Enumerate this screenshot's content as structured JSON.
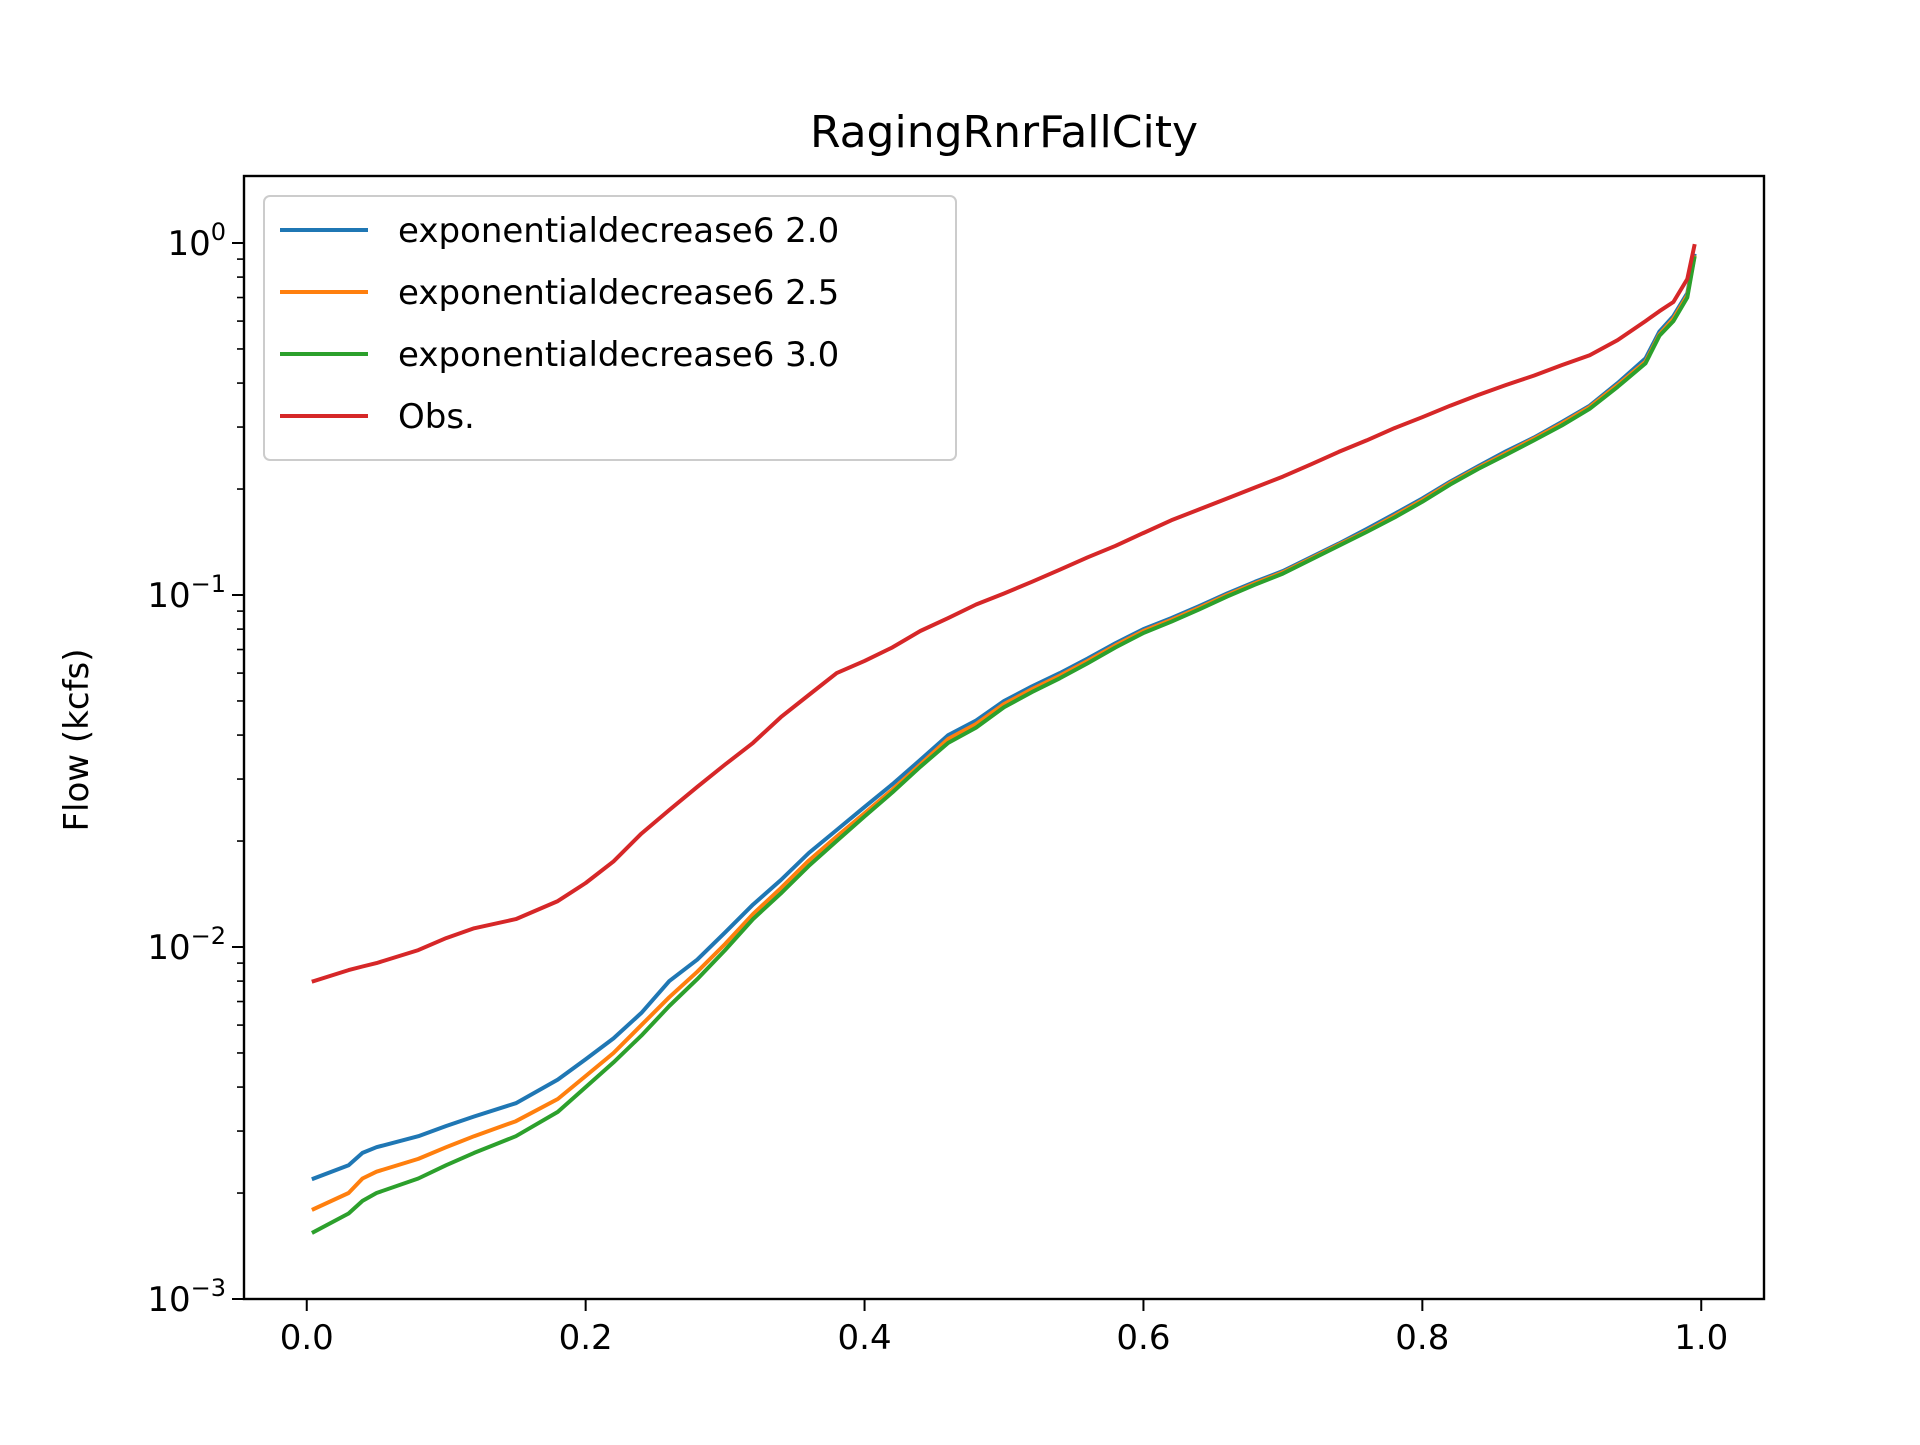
{
  "chart_data": {
    "type": "line",
    "title": "RagingRnrFallCity",
    "xlabel": "",
    "ylabel": "Flow (kcfs)",
    "xlim": [
      -0.045,
      1.045
    ],
    "ylim": [
      0.001,
      1.55
    ],
    "yscale": "log",
    "grid": false,
    "legend_position": "top-left",
    "x_ticks": [
      0.0,
      0.2,
      0.4,
      0.6,
      0.8,
      1.0
    ],
    "x_tick_labels": [
      "0.0",
      "0.2",
      "0.4",
      "0.6",
      "0.8",
      "1.0"
    ],
    "y_ticks": [
      {
        "value": 0.001,
        "base": "10",
        "exp": "−3"
      },
      {
        "value": 0.01,
        "base": "10",
        "exp": "−2"
      },
      {
        "value": 0.1,
        "base": "10",
        "exp": "−1"
      },
      {
        "value": 1,
        "base": "10",
        "exp": "0"
      }
    ],
    "x": [
      0.005,
      0.03,
      0.04,
      0.05,
      0.08,
      0.1,
      0.12,
      0.15,
      0.18,
      0.2,
      0.22,
      0.24,
      0.26,
      0.28,
      0.3,
      0.32,
      0.34,
      0.36,
      0.38,
      0.4,
      0.42,
      0.44,
      0.46,
      0.48,
      0.5,
      0.52,
      0.54,
      0.56,
      0.58,
      0.6,
      0.62,
      0.64,
      0.66,
      0.68,
      0.7,
      0.72,
      0.74,
      0.76,
      0.78,
      0.8,
      0.82,
      0.84,
      0.86,
      0.88,
      0.9,
      0.92,
      0.94,
      0.96,
      0.97,
      0.98,
      0.99,
      0.995
    ],
    "series": [
      {
        "name": "exponentialdecrease6 2.0",
        "color": "#1f77b4",
        "values": [
          0.0022,
          0.0024,
          0.0026,
          0.0027,
          0.0029,
          0.0031,
          0.0033,
          0.0036,
          0.0042,
          0.0048,
          0.0055,
          0.0065,
          0.008,
          0.0092,
          0.011,
          0.0132,
          0.0155,
          0.0185,
          0.0215,
          0.025,
          0.029,
          0.034,
          0.04,
          0.044,
          0.05,
          0.055,
          0.06,
          0.066,
          0.073,
          0.08,
          0.086,
          0.093,
          0.101,
          0.109,
          0.117,
          0.128,
          0.14,
          0.154,
          0.17,
          0.188,
          0.21,
          0.232,
          0.256,
          0.28,
          0.31,
          0.345,
          0.4,
          0.47,
          0.56,
          0.62,
          0.72,
          0.92
        ]
      },
      {
        "name": "exponentialdecrease6 2.5",
        "color": "#ff7f0e",
        "values": [
          0.0018,
          0.002,
          0.0022,
          0.0023,
          0.0025,
          0.0027,
          0.0029,
          0.0032,
          0.0037,
          0.0043,
          0.005,
          0.006,
          0.0072,
          0.0085,
          0.0102,
          0.0124,
          0.0147,
          0.0176,
          0.0206,
          0.024,
          0.028,
          0.033,
          0.039,
          0.043,
          0.049,
          0.054,
          0.059,
          0.065,
          0.072,
          0.079,
          0.085,
          0.092,
          0.1,
          0.108,
          0.116,
          0.127,
          0.139,
          0.152,
          0.168,
          0.186,
          0.208,
          0.23,
          0.253,
          0.278,
          0.307,
          0.342,
          0.395,
          0.46,
          0.55,
          0.61,
          0.71,
          0.91
        ]
      },
      {
        "name": "exponentialdecrease6 3.0",
        "color": "#2ca02c",
        "values": [
          0.00155,
          0.00175,
          0.0019,
          0.002,
          0.0022,
          0.0024,
          0.0026,
          0.0029,
          0.0034,
          0.004,
          0.0047,
          0.0056,
          0.0068,
          0.0081,
          0.0098,
          0.012,
          0.0142,
          0.017,
          0.02,
          0.0235,
          0.0275,
          0.0325,
          0.038,
          0.042,
          0.048,
          0.053,
          0.058,
          0.064,
          0.071,
          0.078,
          0.084,
          0.091,
          0.099,
          0.107,
          0.115,
          0.126,
          0.138,
          0.151,
          0.166,
          0.184,
          0.206,
          0.228,
          0.25,
          0.275,
          0.303,
          0.338,
          0.39,
          0.455,
          0.545,
          0.6,
          0.7,
          0.905
        ]
      },
      {
        "name": "Obs.",
        "color": "#d62728",
        "values": [
          0.008,
          0.0086,
          0.0088,
          0.009,
          0.0098,
          0.0106,
          0.0113,
          0.012,
          0.0135,
          0.0152,
          0.0175,
          0.021,
          0.0245,
          0.0285,
          0.033,
          0.038,
          0.045,
          0.052,
          0.06,
          0.065,
          0.071,
          0.079,
          0.086,
          0.094,
          0.101,
          0.109,
          0.118,
          0.128,
          0.138,
          0.15,
          0.163,
          0.175,
          0.188,
          0.202,
          0.217,
          0.235,
          0.255,
          0.275,
          0.298,
          0.32,
          0.345,
          0.37,
          0.395,
          0.42,
          0.45,
          0.48,
          0.53,
          0.6,
          0.64,
          0.68,
          0.79,
          0.98
        ]
      }
    ]
  }
}
